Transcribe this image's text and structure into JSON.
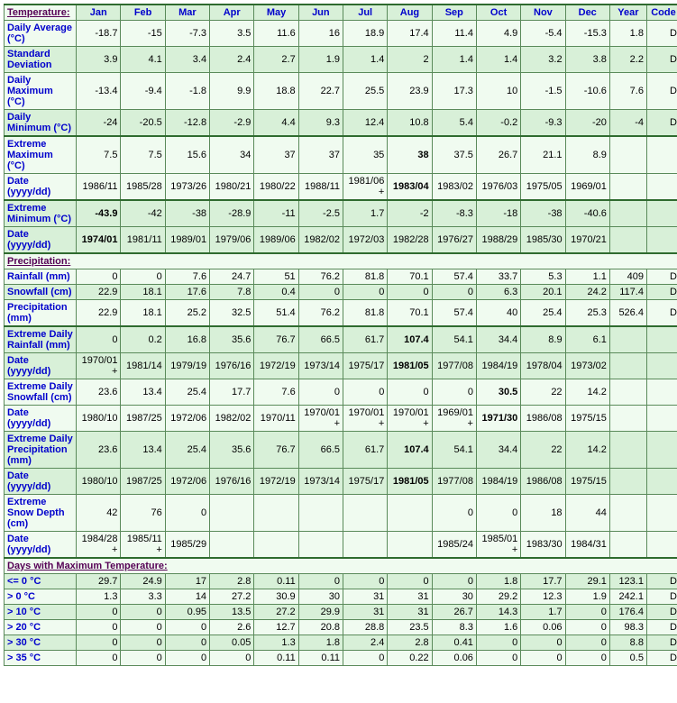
{
  "columns": [
    "Jan",
    "Feb",
    "Mar",
    "Apr",
    "May",
    "Jun",
    "Jul",
    "Aug",
    "Sep",
    "Oct",
    "Nov",
    "Dec",
    "Year",
    "Code"
  ],
  "sections": {
    "temperature": "Temperature:",
    "precipitation": "Precipitation:",
    "days_max_temp": "Days with Maximum Temperature:"
  },
  "rows": [
    {
      "id": "davg",
      "label": "Daily Average (°C)",
      "alt": false,
      "cells": [
        "-18.7",
        "-15",
        "-7.3",
        "3.5",
        "11.6",
        "16",
        "18.9",
        "17.4",
        "11.4",
        "4.9",
        "-5.4",
        "-15.3",
        "1.8",
        "D"
      ]
    },
    {
      "id": "stddev",
      "label": "Standard Deviation",
      "alt": true,
      "cells": [
        "3.9",
        "4.1",
        "3.4",
        "2.4",
        "2.7",
        "1.9",
        "1.4",
        "2",
        "1.4",
        "1.4",
        "3.2",
        "3.8",
        "2.2",
        "D"
      ]
    },
    {
      "id": "dmax",
      "label": "Daily Maximum (°C)",
      "alt": false,
      "cells": [
        "-13.4",
        "-9.4",
        "-1.8",
        "9.9",
        "18.8",
        "22.7",
        "25.5",
        "23.9",
        "17.3",
        "10",
        "-1.5",
        "-10.6",
        "7.6",
        "D"
      ]
    },
    {
      "id": "dmin",
      "label": "Daily Minimum (°C)",
      "alt": true,
      "cells": [
        "-24",
        "-20.5",
        "-12.8",
        "-2.9",
        "4.4",
        "9.3",
        "12.4",
        "10.8",
        "5.4",
        "-0.2",
        "-9.3",
        "-20",
        "-4",
        "D"
      ]
    },
    {
      "id": "extmax",
      "label": "Extreme Maximum (°C)",
      "alt": false,
      "heavy": true,
      "cells": [
        "7.5",
        "7.5",
        "15.6",
        "34",
        "37",
        "37",
        "35",
        "38",
        "37.5",
        "26.7",
        "21.1",
        "8.9",
        "",
        ""
      ],
      "bold": [
        7
      ]
    },
    {
      "id": "extmax_d",
      "label": "Date (yyyy/dd)",
      "alt": false,
      "cells": [
        "1986/11",
        "1985/28",
        "1973/26",
        "1980/21",
        "1980/22",
        "1988/11",
        "1981/06+",
        "1983/04",
        "1983/02",
        "1976/03",
        "1975/05",
        "1969/01",
        "",
        ""
      ],
      "bold": [
        7
      ]
    },
    {
      "id": "extmin",
      "label": "Extreme Minimum (°C)",
      "alt": true,
      "heavy": true,
      "cells": [
        "-43.9",
        "-42",
        "-38",
        "-28.9",
        "-11",
        "-2.5",
        "1.7",
        "-2",
        "-8.3",
        "-18",
        "-38",
        "-40.6",
        "",
        ""
      ],
      "bold": [
        0
      ]
    },
    {
      "id": "extmin_d",
      "label": "Date (yyyy/dd)",
      "alt": true,
      "cells": [
        "1974/01",
        "1981/11",
        "1989/01",
        "1979/06",
        "1989/06",
        "1982/02",
        "1972/03",
        "1982/28",
        "1976/27",
        "1988/29",
        "1985/30",
        "1970/21",
        "",
        ""
      ],
      "bold": [
        0
      ]
    },
    {
      "id": "rain",
      "label": "Rainfall (mm)",
      "alt": false,
      "cells": [
        "0",
        "0",
        "7.6",
        "24.7",
        "51",
        "76.2",
        "81.8",
        "70.1",
        "57.4",
        "33.7",
        "5.3",
        "1.1",
        "409",
        "D"
      ]
    },
    {
      "id": "snow",
      "label": "Snowfall (cm)",
      "alt": true,
      "cells": [
        "22.9",
        "18.1",
        "17.6",
        "7.8",
        "0.4",
        "0",
        "0",
        "0",
        "0",
        "6.3",
        "20.1",
        "24.2",
        "117.4",
        "D"
      ]
    },
    {
      "id": "precip",
      "label": "Precipitation (mm)",
      "alt": false,
      "cells": [
        "22.9",
        "18.1",
        "25.2",
        "32.5",
        "51.4",
        "76.2",
        "81.8",
        "70.1",
        "57.4",
        "40",
        "25.4",
        "25.3",
        "526.4",
        "D"
      ]
    },
    {
      "id": "extrain",
      "label": "Extreme Daily Rainfall (mm)",
      "alt": true,
      "heavy": true,
      "cells": [
        "0",
        "0.2",
        "16.8",
        "35.6",
        "76.7",
        "66.5",
        "61.7",
        "107.4",
        "54.1",
        "34.4",
        "8.9",
        "6.1",
        "",
        ""
      ],
      "bold": [
        7
      ]
    },
    {
      "id": "extrain_d",
      "label": "Date (yyyy/dd)",
      "alt": true,
      "cells": [
        "1970/01+",
        "1981/14",
        "1979/19",
        "1976/16",
        "1972/19",
        "1973/14",
        "1975/17",
        "1981/05",
        "1977/08",
        "1984/19",
        "1978/04",
        "1973/02",
        "",
        ""
      ],
      "bold": [
        7
      ]
    },
    {
      "id": "extsnow",
      "label": "Extreme Daily Snowfall (cm)",
      "alt": false,
      "cells": [
        "23.6",
        "13.4",
        "25.4",
        "17.7",
        "7.6",
        "0",
        "0",
        "0",
        "0",
        "30.5",
        "22",
        "14.2",
        "",
        ""
      ],
      "bold": [
        9
      ]
    },
    {
      "id": "extsnow_d",
      "label": "Date (yyyy/dd)",
      "alt": false,
      "cells": [
        "1980/10",
        "1987/25",
        "1972/06",
        "1982/02",
        "1970/11",
        "1970/01+",
        "1970/01+",
        "1970/01+",
        "1969/01+",
        "1971/30",
        "1986/08",
        "1975/15",
        "",
        ""
      ],
      "bold": [
        9
      ]
    },
    {
      "id": "extprec",
      "label": "Extreme Daily Precipitation (mm)",
      "alt": true,
      "cells": [
        "23.6",
        "13.4",
        "25.4",
        "35.6",
        "76.7",
        "66.5",
        "61.7",
        "107.4",
        "54.1",
        "34.4",
        "22",
        "14.2",
        "",
        ""
      ],
      "bold": [
        7
      ]
    },
    {
      "id": "extprec_d",
      "label": "Date (yyyy/dd)",
      "alt": true,
      "cells": [
        "1980/10",
        "1987/25",
        "1972/06",
        "1976/16",
        "1972/19",
        "1973/14",
        "1975/17",
        "1981/05",
        "1977/08",
        "1984/19",
        "1986/08",
        "1975/15",
        "",
        ""
      ],
      "bold": [
        7
      ]
    },
    {
      "id": "snowdepth",
      "label": "Extreme Snow Depth (cm)",
      "alt": false,
      "cells": [
        "42",
        "76",
        "0",
        "",
        "",
        "",
        "",
        "",
        "0",
        "0",
        "18",
        "44",
        "",
        ""
      ]
    },
    {
      "id": "snowdepth_d",
      "label": "Date (yyyy/dd)",
      "alt": false,
      "cells": [
        "1984/28+",
        "1985/11+",
        "1985/29",
        "",
        "",
        "",
        "",
        "",
        "1985/24",
        "1985/01+",
        "1983/30",
        "1984/31",
        "",
        ""
      ]
    },
    {
      "id": "le0",
      "label": "<= 0 °C",
      "alt": true,
      "cells": [
        "29.7",
        "24.9",
        "17",
        "2.8",
        "0.11",
        "0",
        "0",
        "0",
        "0",
        "1.8",
        "17.7",
        "29.1",
        "123.1",
        "D"
      ]
    },
    {
      "id": "gt0",
      "label": "> 0 °C",
      "alt": false,
      "cells": [
        "1.3",
        "3.3",
        "14",
        "27.2",
        "30.9",
        "30",
        "31",
        "31",
        "30",
        "29.2",
        "12.3",
        "1.9",
        "242.1",
        "D"
      ]
    },
    {
      "id": "gt10",
      "label": "> 10 °C",
      "alt": true,
      "cells": [
        "0",
        "0",
        "0.95",
        "13.5",
        "27.2",
        "29.9",
        "31",
        "31",
        "26.7",
        "14.3",
        "1.7",
        "0",
        "176.4",
        "D"
      ]
    },
    {
      "id": "gt20",
      "label": "> 20 °C",
      "alt": false,
      "cells": [
        "0",
        "0",
        "0",
        "2.6",
        "12.7",
        "20.8",
        "28.8",
        "23.5",
        "8.3",
        "1.6",
        "0.06",
        "0",
        "98.3",
        "D"
      ]
    },
    {
      "id": "gt30",
      "label": "> 30 °C",
      "alt": true,
      "cells": [
        "0",
        "0",
        "0",
        "0.05",
        "1.3",
        "1.8",
        "2.4",
        "2.8",
        "0.41",
        "0",
        "0",
        "0",
        "8.8",
        "D"
      ]
    },
    {
      "id": "gt35",
      "label": "> 35 °C",
      "alt": false,
      "cells": [
        "0",
        "0",
        "0",
        "0",
        "0.11",
        "0.11",
        "0",
        "0.22",
        "0.06",
        "0",
        "0",
        "0",
        "0.5",
        "D"
      ]
    }
  ]
}
